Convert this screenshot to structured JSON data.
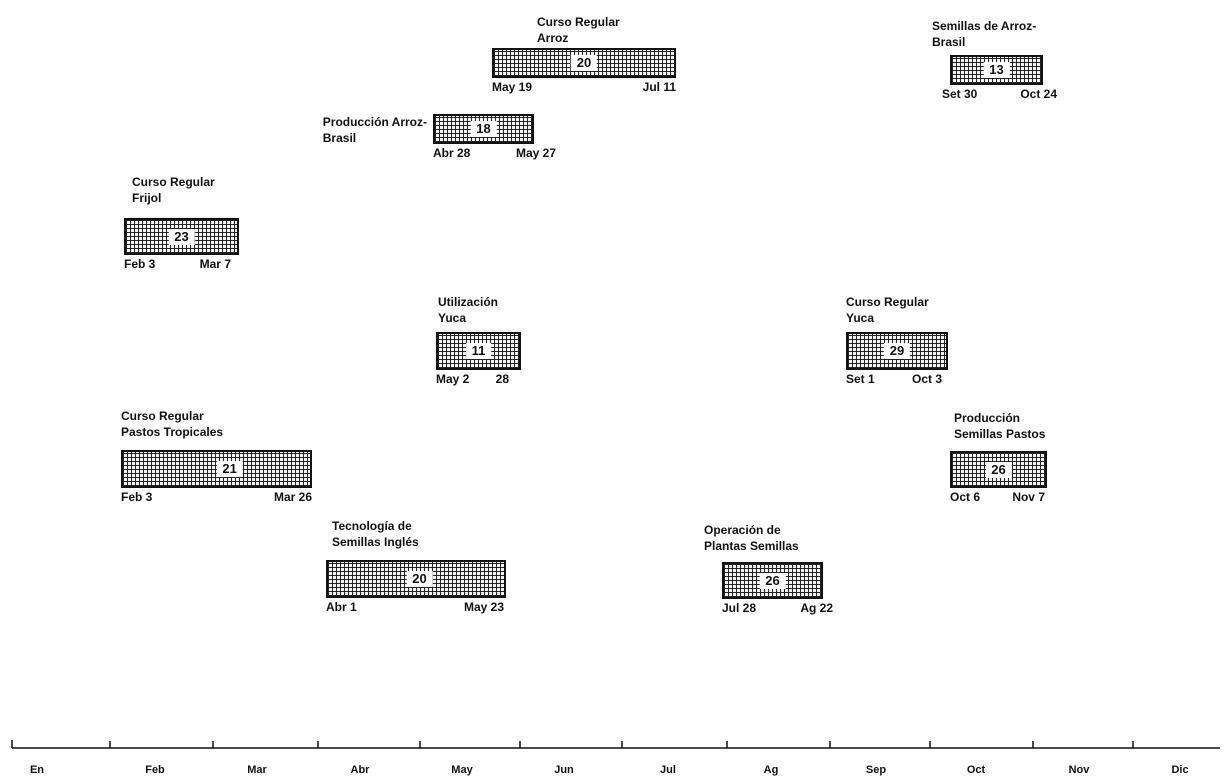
{
  "courses": [
    {
      "id": "arroz",
      "title1": "Curso Regular",
      "title2": "Arroz",
      "count": "20",
      "start": "May 19",
      "end": "Jul 11"
    },
    {
      "id": "semillas-arroz",
      "title1": "Semillas de Arroz-",
      "title2": "Brasil",
      "count": "13",
      "start": "Set 30",
      "end": "Oct 24"
    },
    {
      "id": "produccion-arroz",
      "title1": "Producción Arroz-",
      "title2": "Brasil",
      "count": "18",
      "start": "Abr 28",
      "end": "May 27"
    },
    {
      "id": "frijol",
      "title1": "Curso Regular",
      "title2": "Frijol",
      "count": "23",
      "start": "Feb 3",
      "end": "Mar 7"
    },
    {
      "id": "utilizacion-yuca",
      "title1": "Utilización",
      "title2": "Yuca",
      "count": "11",
      "start": "May 2",
      "end": "28"
    },
    {
      "id": "yuca",
      "title1": "Curso Regular",
      "title2": "Yuca",
      "count": "29",
      "start": "Set 1",
      "end": "Oct 3"
    },
    {
      "id": "pastos",
      "title1": "Curso Regular",
      "title2": "Pastos Tropicales",
      "count": "21",
      "start": "Feb 3",
      "end": "Mar 26"
    },
    {
      "id": "semillas-pastos",
      "title1": "Producción",
      "title2": "Semillas Pastos",
      "count": "26",
      "start": "Oct 6",
      "end": "Nov 7"
    },
    {
      "id": "tecnologia",
      "title1": "Tecnología de",
      "title2": "Semillas Inglés",
      "count": "20",
      "start": "Abr 1",
      "end": "May 23"
    },
    {
      "id": "plantas",
      "title1": "Operación de",
      "title2": "Plantas Semillas",
      "count": "26",
      "start": "Jul 28",
      "end": "Ag 22"
    }
  ],
  "months": [
    "En",
    "Feb",
    "Mar",
    "Abr",
    "May",
    "Jun",
    "Jul",
    "Ag",
    "Sep",
    "Oct",
    "Nov",
    "Dic"
  ]
}
